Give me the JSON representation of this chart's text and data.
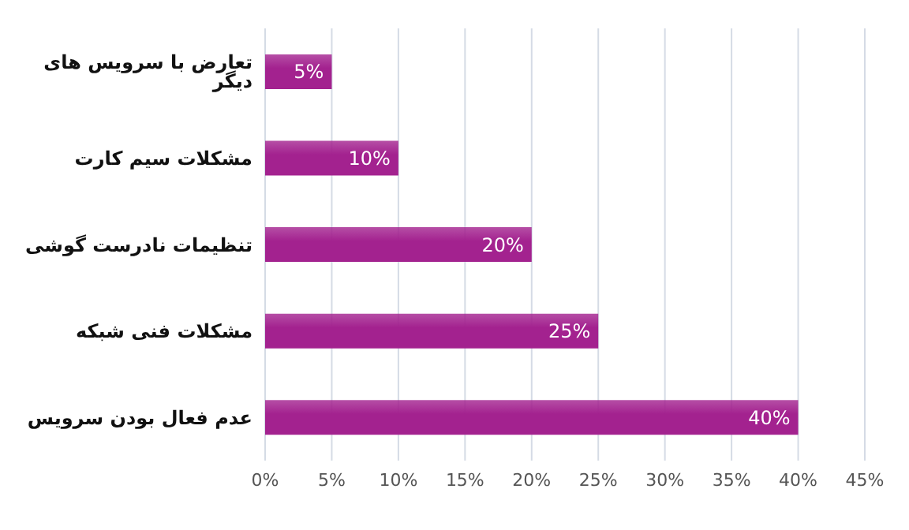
{
  "chart_data": {
    "type": "bar",
    "orientation": "horizontal",
    "categories": [
      "تعارض با سرویس های دیگر",
      "مشکلات سیم کارت",
      "تنظیمات نادرست گوشی",
      "مشکلات فنی شبکه",
      "عدم فعال بودن سرویس"
    ],
    "values": [
      5,
      10,
      20,
      25,
      40
    ],
    "value_labels": [
      "5%",
      "10%",
      "20%",
      "25%",
      "40%"
    ],
    "color": "#a3228f",
    "xlim": [
      0,
      45
    ],
    "xticks": [
      {
        "value": 0,
        "label": "0%"
      },
      {
        "value": 5,
        "label": "5%"
      },
      {
        "value": 10,
        "label": "10%"
      },
      {
        "value": 15,
        "label": "15%"
      },
      {
        "value": 20,
        "label": "20%"
      },
      {
        "value": 25,
        "label": "25%"
      },
      {
        "value": 30,
        "label": "30%"
      },
      {
        "value": 35,
        "label": "35%"
      },
      {
        "value": 40,
        "label": "40%"
      },
      {
        "value": 45,
        "label": "45%"
      }
    ],
    "grid": "x"
  }
}
